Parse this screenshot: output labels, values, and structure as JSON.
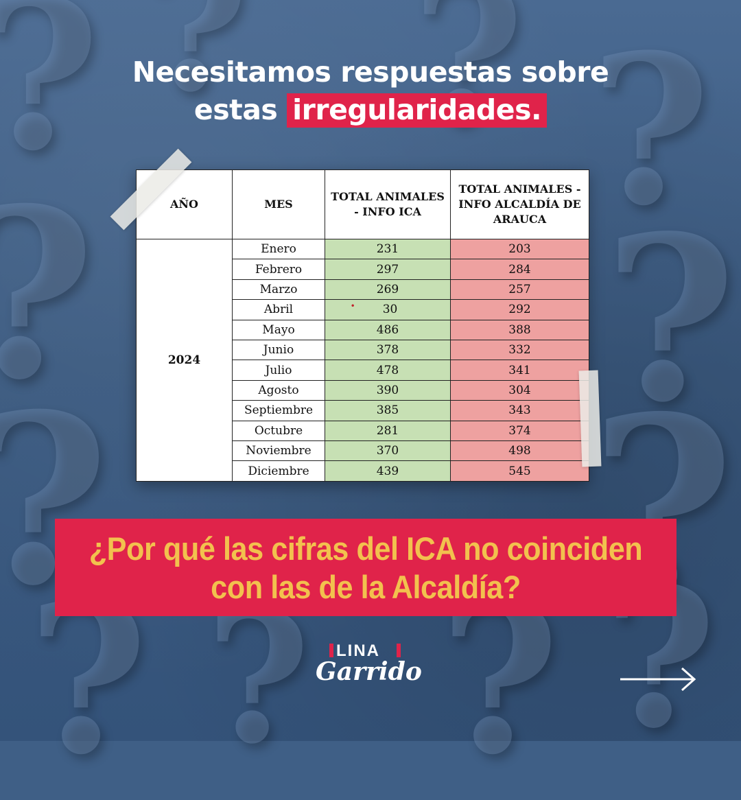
{
  "headline": {
    "line1": "Necesitamos respuestas sobre",
    "line2_prefix": "estas ",
    "line2_highlight": "irregularidades."
  },
  "table": {
    "headers": [
      "AÑO",
      "MES",
      "TOTAL ANIMALES - INFO ICA",
      "TOTAL ANIMALES - INFO ALCALDÍA DE ARAUCA"
    ],
    "year": "2024",
    "rows": [
      {
        "mes": "Enero",
        "ica": "231",
        "alcaldia": "203"
      },
      {
        "mes": "Febrero",
        "ica": "297",
        "alcaldia": "284"
      },
      {
        "mes": "Marzo",
        "ica": "269",
        "alcaldia": "257"
      },
      {
        "mes": "Abril",
        "ica": "30",
        "alcaldia": "292"
      },
      {
        "mes": "Mayo",
        "ica": "486",
        "alcaldia": "388"
      },
      {
        "mes": "Junio",
        "ica": "378",
        "alcaldia": "332"
      },
      {
        "mes": "Julio",
        "ica": "478",
        "alcaldia": "341"
      },
      {
        "mes": "Agosto",
        "ica": "390",
        "alcaldia": "304"
      },
      {
        "mes": "Septiembre",
        "ica": "385",
        "alcaldia": "343"
      },
      {
        "mes": "Octubre",
        "ica": "281",
        "alcaldia": "374"
      },
      {
        "mes": "Noviembre",
        "ica": "370",
        "alcaldia": "498"
      },
      {
        "mes": "Diciembre",
        "ica": "439",
        "alcaldia": "545"
      }
    ]
  },
  "question": {
    "line1": "¿Por qué las cifras del ICA no coinciden",
    "line2": "con las de la Alcaldía?"
  },
  "logo": {
    "top": "LINA",
    "script": "Garrido"
  },
  "colors": {
    "accent": "#e0234a",
    "question_text": "#f2c14e",
    "ica_cell": "#c7e0b4",
    "alcaldia_cell": "#eea1a0",
    "background": "#3f5f86"
  },
  "icons": [
    "next-arrow-icon"
  ]
}
